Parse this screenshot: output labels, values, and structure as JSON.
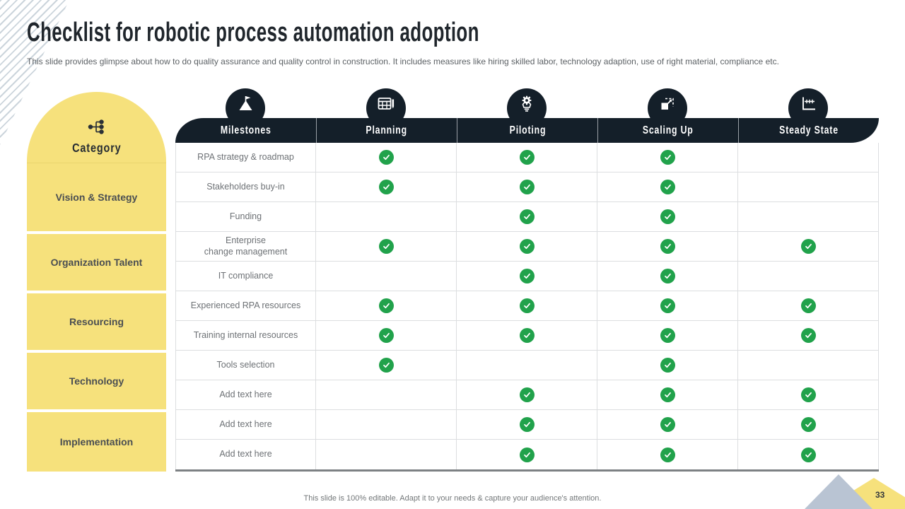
{
  "slide": {
    "title": "Checklist for robotic process automation adoption",
    "subtitle": "This slide provides glimpse about how to do quality assurance and quality control in construction. It includes measures like hiring skilled labor, technology adaption, use of right material, compliance etc.",
    "footer": "This slide is 100% editable. Adapt it to your needs & capture your audience's attention.",
    "page_number": "33"
  },
  "sidebar": {
    "header": {
      "label": "Category",
      "icon": "hierarchy-icon"
    },
    "items": [
      {
        "label": "Vision & Strategy"
      },
      {
        "label": "Organization Talent"
      },
      {
        "label": "Resourcing"
      },
      {
        "label": "Technology"
      },
      {
        "label": "Implementation"
      }
    ]
  },
  "table": {
    "columns": [
      {
        "label": "Milestones",
        "icon": "flag-mountain-icon"
      },
      {
        "label": "Planning",
        "icon": "calendar-pencil-icon"
      },
      {
        "label": "Piloting",
        "icon": "bulb-gear-icon"
      },
      {
        "label": "Scaling Up",
        "icon": "resize-expand-icon"
      },
      {
        "label": "Steady State",
        "icon": "steady-chart-icon"
      }
    ],
    "check_icon": "green-check-icon",
    "rows": [
      {
        "milestone": "RPA strategy & roadmap",
        "checks": [
          true,
          true,
          true,
          false
        ]
      },
      {
        "milestone": "Stakeholders buy-in",
        "checks": [
          true,
          true,
          true,
          false
        ]
      },
      {
        "milestone": "Funding",
        "checks": [
          false,
          true,
          true,
          false
        ]
      },
      {
        "milestone": "Enterprise\nchange management",
        "checks": [
          true,
          true,
          true,
          true
        ]
      },
      {
        "milestone": "IT compliance",
        "checks": [
          false,
          true,
          true,
          false
        ]
      },
      {
        "milestone": "Experienced RPA resources",
        "checks": [
          true,
          true,
          true,
          true
        ]
      },
      {
        "milestone": "Training internal resources",
        "checks": [
          true,
          true,
          true,
          true
        ]
      },
      {
        "milestone": "Tools selection",
        "checks": [
          true,
          false,
          true,
          false
        ]
      },
      {
        "milestone": "Add text here",
        "checks": [
          false,
          true,
          true,
          true
        ],
        "placeholder": true
      },
      {
        "milestone": "Add text here",
        "checks": [
          false,
          true,
          true,
          true
        ],
        "placeholder": true
      },
      {
        "milestone": "Add text here",
        "checks": [
          false,
          true,
          true,
          true
        ],
        "placeholder": true
      }
    ]
  },
  "colors": {
    "accent_yellow": "#f6e17c",
    "dark_navy": "#141f29",
    "check_green": "#21a24b",
    "triangle_blue": "#b9c4d3",
    "hatch_gray": "#ccd5dc"
  }
}
